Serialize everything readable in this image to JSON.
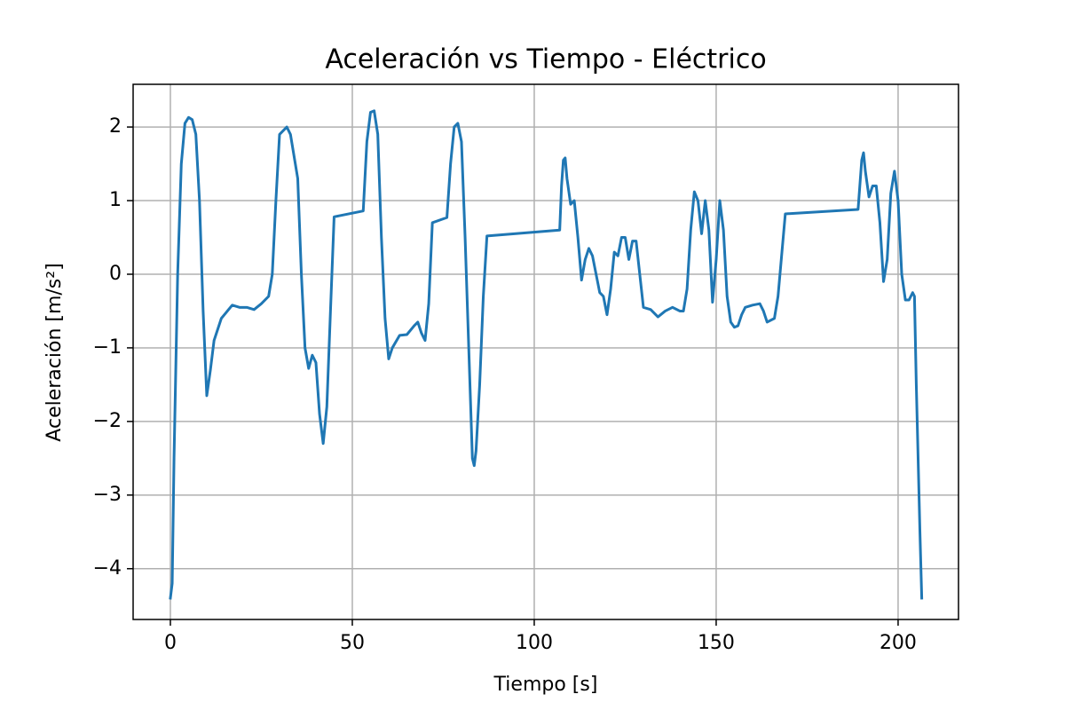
{
  "chart_data": {
    "type": "line",
    "title": "Aceleración vs Tiempo - Eléctrico",
    "xlabel": "Tiempo [s]",
    "ylabel": "Aceleración [m/s²]",
    "color": "#1f77b4",
    "grid": true,
    "xlim": [
      -10.24,
      216.6
    ],
    "ylim": [
      -4.69,
      2.58
    ],
    "xticks": [
      0,
      50,
      100,
      150,
      200
    ],
    "yticks": [
      {
        "value": -4,
        "label": "−4"
      },
      {
        "value": -3,
        "label": "−3"
      },
      {
        "value": -2,
        "label": "−2"
      },
      {
        "value": -1,
        "label": "−1"
      },
      0,
      1,
      2
    ],
    "x": [
      0,
      0.5,
      1,
      2,
      3,
      4,
      5,
      6,
      7,
      8,
      9,
      10,
      11,
      12,
      14,
      17,
      19,
      21,
      23,
      25,
      27,
      28,
      29,
      30,
      32,
      33,
      35,
      36,
      37,
      38,
      39,
      40,
      41,
      42,
      43,
      44,
      45,
      53,
      54,
      55,
      56,
      57,
      58,
      59,
      60,
      61,
      63,
      65,
      67,
      68,
      69,
      70,
      71,
      72,
      76,
      77,
      78,
      79,
      80,
      81,
      82,
      83,
      83.5,
      84,
      85,
      86,
      87,
      107,
      107.5,
      108,
      108.5,
      109,
      110,
      111,
      112,
      113,
      114,
      115,
      116,
      117,
      118,
      119,
      120,
      121,
      122,
      123,
      124,
      125,
      126,
      127,
      128,
      129,
      130,
      132,
      134,
      136,
      138,
      140,
      141,
      142,
      143,
      144,
      145,
      146,
      147,
      148,
      149,
      150,
      151,
      152,
      153,
      154,
      155,
      156,
      157,
      158,
      160,
      162,
      163,
      164,
      166,
      167,
      169,
      189,
      190,
      190.5,
      191,
      192,
      193,
      194,
      195,
      196,
      197,
      198,
      199,
      200,
      201,
      202,
      203,
      204,
      204.5,
      205,
      206,
      206.5
    ],
    "values": [
      -4.4,
      -4.2,
      -2.5,
      0.0,
      1.5,
      2.05,
      2.13,
      2.1,
      1.9,
      1.0,
      -0.5,
      -1.65,
      -1.3,
      -0.9,
      -0.6,
      -0.42,
      -0.45,
      -0.45,
      -0.48,
      -0.4,
      -0.3,
      0.0,
      1.0,
      1.9,
      2.0,
      1.9,
      1.3,
      0.0,
      -1.0,
      -1.28,
      -1.1,
      -1.2,
      -1.9,
      -2.3,
      -1.8,
      -0.5,
      0.78,
      0.86,
      1.8,
      2.2,
      2.22,
      1.9,
      0.5,
      -0.6,
      -1.15,
      -1.0,
      -0.83,
      -0.82,
      -0.7,
      -0.65,
      -0.8,
      -0.9,
      -0.4,
      0.7,
      0.77,
      1.5,
      2.0,
      2.05,
      1.8,
      0.5,
      -1.0,
      -2.5,
      -2.6,
      -2.4,
      -1.5,
      -0.3,
      0.52,
      0.6,
      1.2,
      1.55,
      1.58,
      1.3,
      0.95,
      1.0,
      0.5,
      -0.08,
      0.2,
      0.35,
      0.25,
      0.0,
      -0.25,
      -0.3,
      -0.55,
      -0.2,
      0.3,
      0.25,
      0.5,
      0.5,
      0.2,
      0.45,
      0.45,
      0.0,
      -0.45,
      -0.48,
      -0.58,
      -0.5,
      -0.45,
      -0.5,
      -0.5,
      -0.2,
      0.6,
      1.12,
      1.0,
      0.55,
      1.0,
      0.6,
      -0.38,
      0.2,
      1.0,
      0.6,
      -0.3,
      -0.65,
      -0.72,
      -0.7,
      -0.55,
      -0.45,
      -0.42,
      -0.4,
      -0.5,
      -0.65,
      -0.6,
      -0.3,
      0.82,
      0.88,
      1.55,
      1.65,
      1.4,
      1.05,
      1.2,
      1.2,
      0.7,
      -0.1,
      0.2,
      1.1,
      1.4,
      1.0,
      0.0,
      -0.35,
      -0.35,
      -0.25,
      -0.3,
      -1.5,
      -3.5,
      -4.4
    ]
  }
}
